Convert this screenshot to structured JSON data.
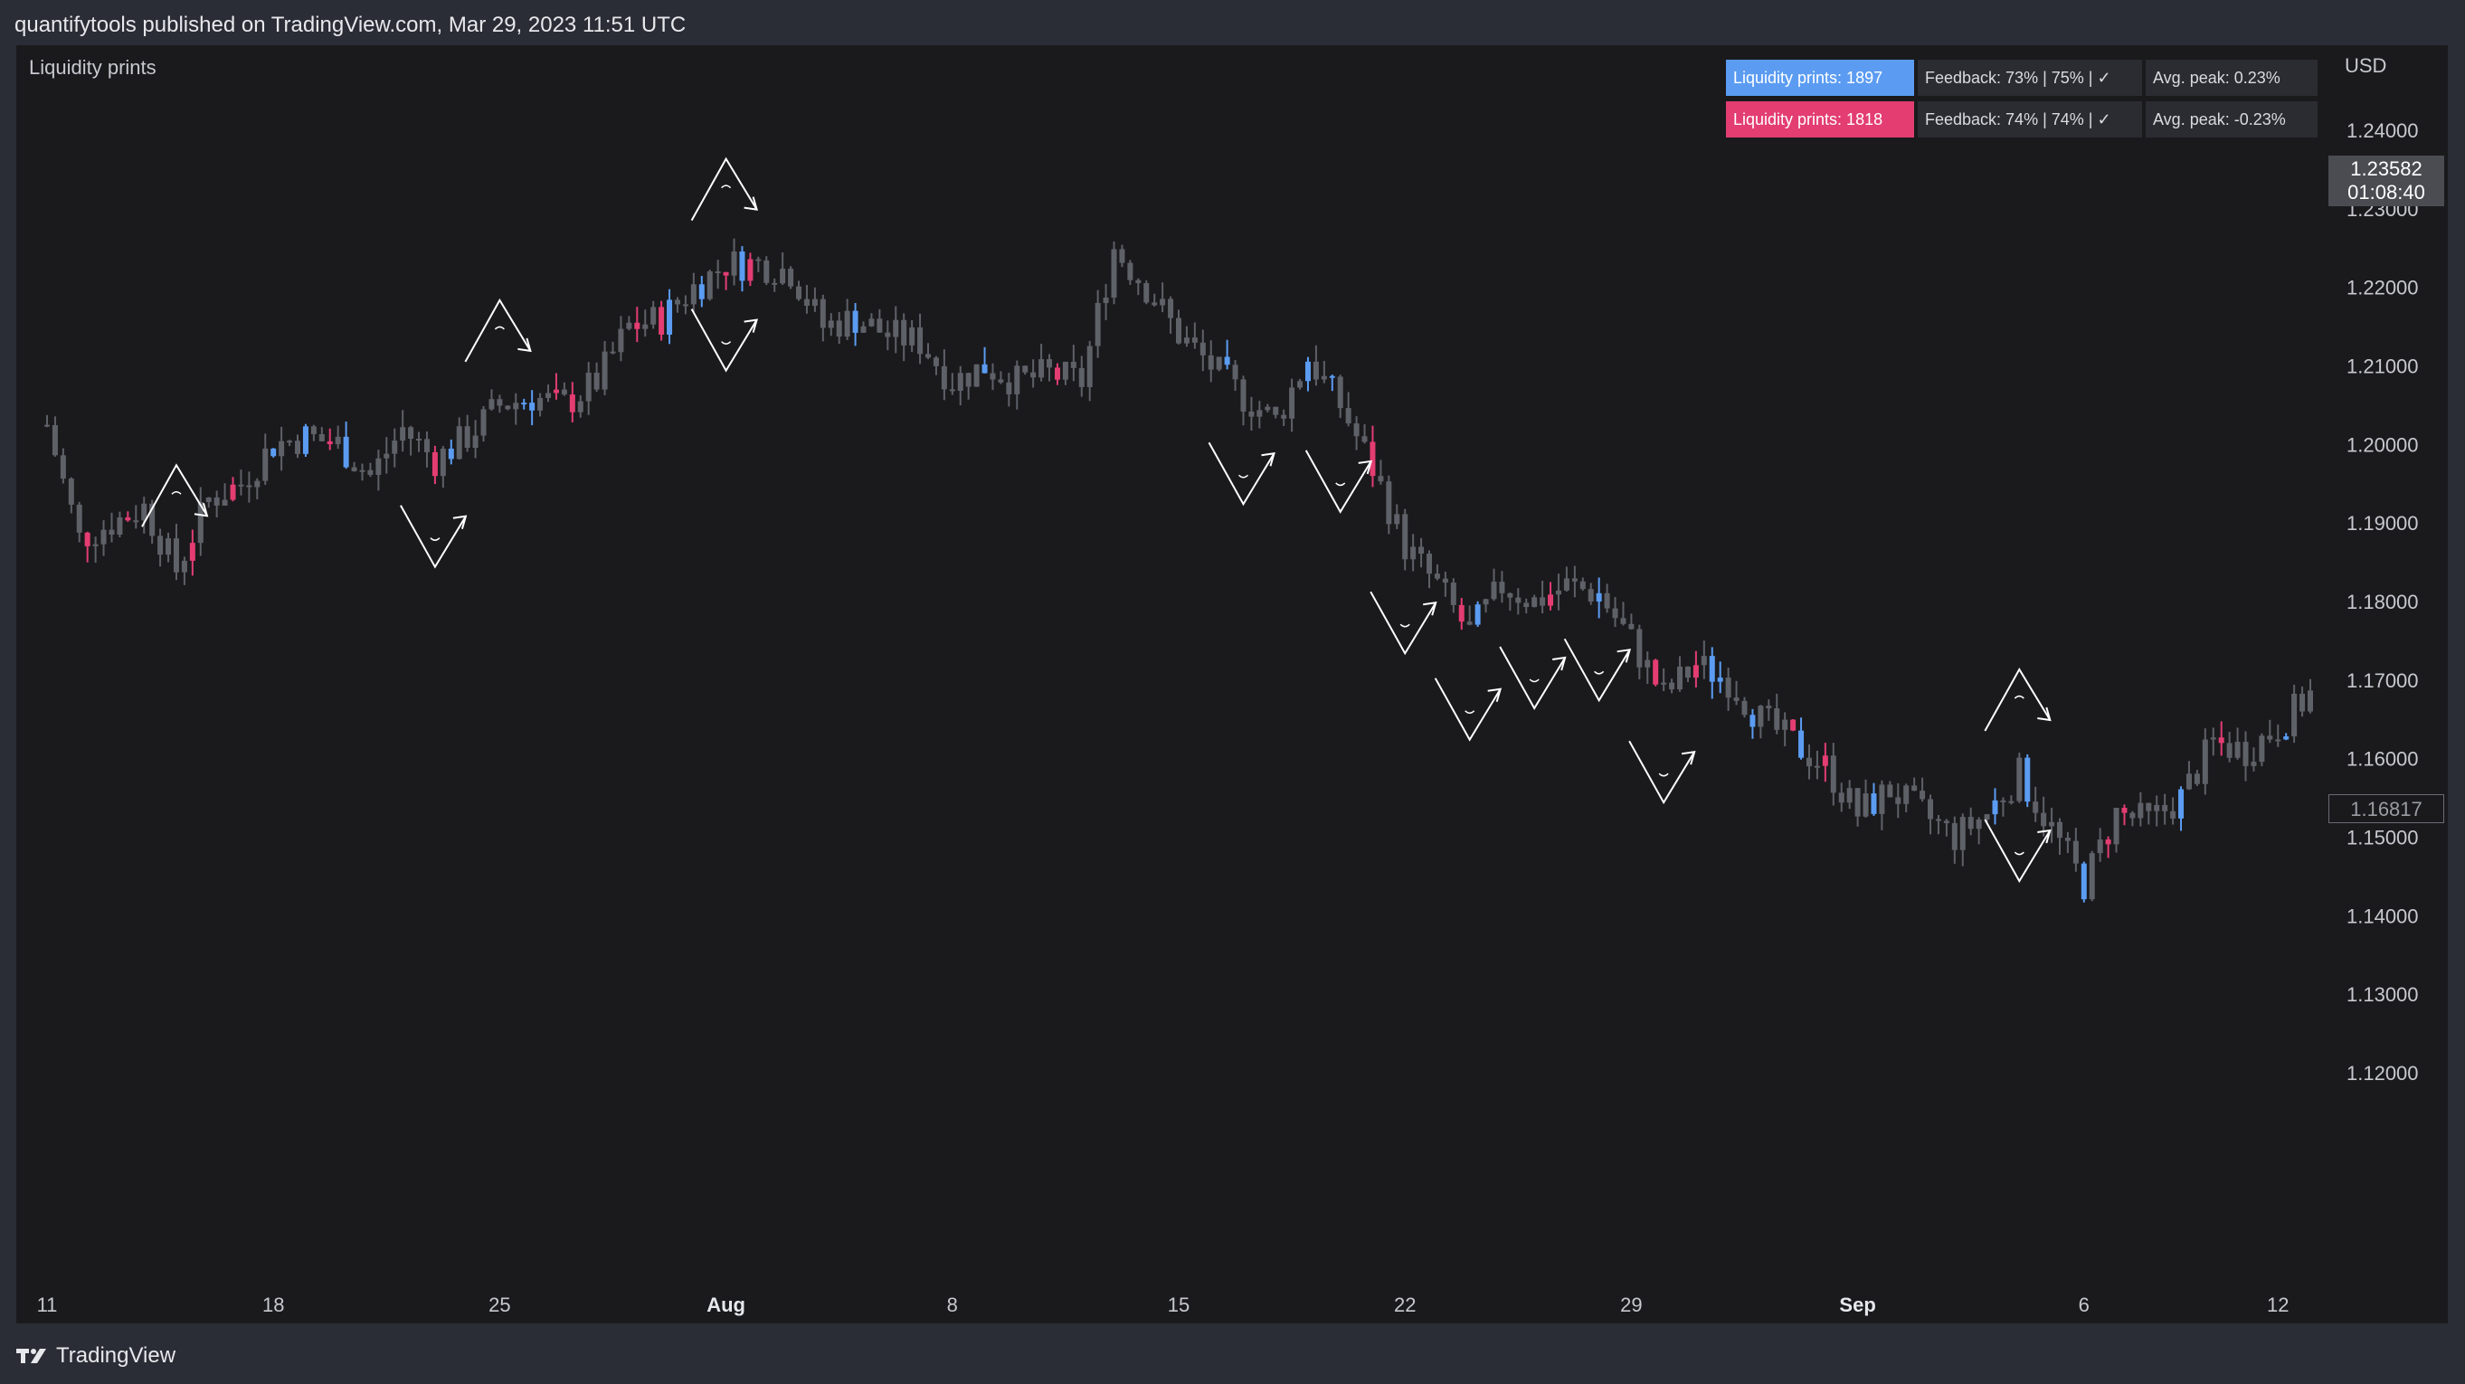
{
  "header": {
    "published_text": "quantifytools published on TradingView.com, Mar 29, 2023 11:51 UTC"
  },
  "indicator": {
    "name": "Liquidity prints"
  },
  "info_table": {
    "rows": [
      {
        "prints": "Liquidity prints: 1897",
        "feedback": "Feedback: 73% | 75% | ✓",
        "avg_peak": "Avg. peak: 0.23%",
        "color": "#5b9cf2"
      },
      {
        "prints": "Liquidity prints: 1818",
        "feedback": "Feedback: 74% | 74% | ✓",
        "avg_peak": "Avg. peak: -0.23%",
        "color": "#e33d72"
      }
    ]
  },
  "price_axis": {
    "currency": "USD",
    "ticks": [
      "1.24000",
      "1.23000",
      "1.22000",
      "1.21000",
      "1.20000",
      "1.19000",
      "1.18000",
      "1.17000",
      "1.16000",
      "1.15000",
      "1.14000",
      "1.13000",
      "1.12000"
    ],
    "last_price": "1.23582",
    "countdown": "01:08:40",
    "current_close": "1.16817"
  },
  "time_axis": {
    "ticks": [
      "11",
      "18",
      "25",
      "Aug",
      "8",
      "15",
      "22",
      "29",
      "Sep",
      "6",
      "12"
    ],
    "bold": [
      "Aug",
      "Sep"
    ]
  },
  "footer": {
    "brand": "TradingView"
  },
  "colors": {
    "bullish_print": "#e33d72",
    "bearish_print": "#5b9cf2",
    "candle": "#5f6168",
    "annotation": "#ffffff",
    "background": "#1a1a1d"
  },
  "chart_data": {
    "type": "candlestick",
    "symbol_currency": "USD",
    "ylim": [
      1.12,
      1.24
    ],
    "x_ticks": [
      "11",
      "18",
      "25",
      "Aug",
      "8",
      "15",
      "22",
      "29",
      "Sep",
      "6",
      "12"
    ],
    "x_tick_index": [
      0,
      7,
      14,
      21,
      28,
      35,
      42,
      49,
      56,
      63,
      69
    ],
    "series": [
      {
        "name": "close",
        "values": [
          1.2025,
          1.188,
          1.19,
          1.192,
          1.184,
          1.193,
          1.195,
          1.2,
          1.201,
          1.2,
          1.196,
          1.202,
          1.198,
          1.201,
          1.205,
          1.206,
          1.205,
          1.208,
          1.215,
          1.216,
          1.22,
          1.223,
          1.223,
          1.222,
          1.215,
          1.216,
          1.214,
          1.213,
          1.208,
          1.21,
          1.208,
          1.209,
          1.208,
          1.225,
          1.22,
          1.214,
          1.21,
          1.206,
          1.203,
          1.211,
          1.205,
          1.197,
          1.187,
          1.182,
          1.176,
          1.182,
          1.18,
          1.182,
          1.181,
          1.175,
          1.168,
          1.172,
          1.17,
          1.165,
          1.162,
          1.159,
          1.153,
          1.156,
          1.153,
          1.15,
          1.153,
          1.158,
          1.151,
          1.144,
          1.153,
          1.152,
          1.155,
          1.162,
          1.161,
          1.164,
          1.1682
        ]
      }
    ],
    "liquidity_prints": {
      "bullish_count": 1897,
      "bearish_count": 1818
    },
    "annotations": [
      {
        "kind": "top",
        "at": 4
      },
      {
        "kind": "bottom",
        "at": 12
      },
      {
        "kind": "top",
        "at": 14
      },
      {
        "kind": "top",
        "at": 21
      },
      {
        "kind": "bottom",
        "at": 21
      },
      {
        "kind": "bottom",
        "at": 37
      },
      {
        "kind": "bottom",
        "at": 40
      },
      {
        "kind": "bottom",
        "at": 42
      },
      {
        "kind": "bottom",
        "at": 44
      },
      {
        "kind": "bottom",
        "at": 46
      },
      {
        "kind": "bottom",
        "at": 48
      },
      {
        "kind": "bottom",
        "at": 50
      },
      {
        "kind": "bottom",
        "at": 61
      },
      {
        "kind": "top",
        "at": 61
      }
    ]
  }
}
